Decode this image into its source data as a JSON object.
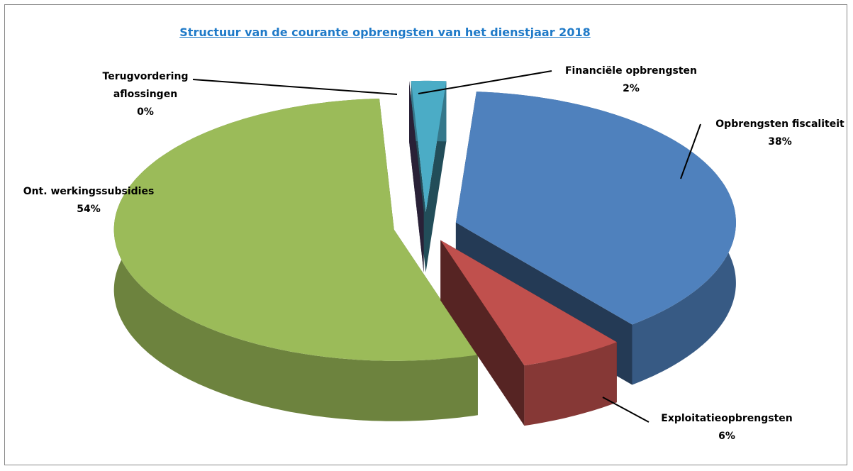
{
  "chart_data": {
    "type": "pie",
    "title": "Structuur van de courante opbrengsten van het dienstjaar 2018",
    "categories": [
      "Financiële opbrengsten",
      "Opbrengsten fiscaliteit",
      "Exploitatieopbrengsten",
      "Ont. werkingssubsidies",
      "Terugvordering aflossingen"
    ],
    "values": [
      2,
      38,
      6,
      54,
      0
    ],
    "value_labels": [
      "2%",
      "38%",
      "6%",
      "54%",
      "0%"
    ],
    "colors": [
      "#4bacc6",
      "#4f81bd",
      "#c0504d",
      "#9bbb59",
      "#5b4a7a"
    ],
    "exploded": true,
    "three_d": true
  }
}
